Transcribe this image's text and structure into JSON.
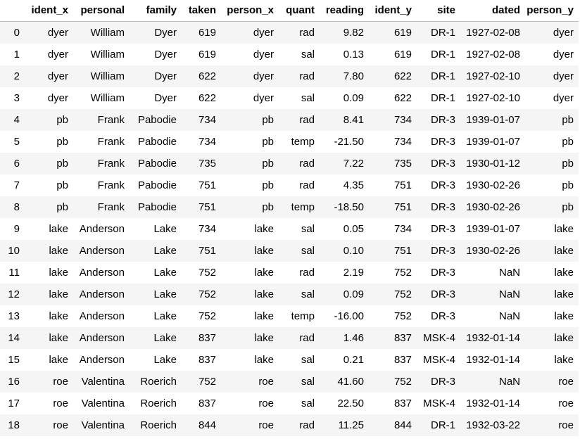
{
  "table": {
    "columns": [
      "",
      "ident_x",
      "personal",
      "family",
      "taken",
      "person_x",
      "quant",
      "reading",
      "ident_y",
      "site",
      "dated",
      "person_y"
    ],
    "rows": [
      [
        "0",
        "dyer",
        "William",
        "Dyer",
        "619",
        "dyer",
        "rad",
        "9.82",
        "619",
        "DR-1",
        "1927-02-08",
        "dyer"
      ],
      [
        "1",
        "dyer",
        "William",
        "Dyer",
        "619",
        "dyer",
        "sal",
        "0.13",
        "619",
        "DR-1",
        "1927-02-08",
        "dyer"
      ],
      [
        "2",
        "dyer",
        "William",
        "Dyer",
        "622",
        "dyer",
        "rad",
        "7.80",
        "622",
        "DR-1",
        "1927-02-10",
        "dyer"
      ],
      [
        "3",
        "dyer",
        "William",
        "Dyer",
        "622",
        "dyer",
        "sal",
        "0.09",
        "622",
        "DR-1",
        "1927-02-10",
        "dyer"
      ],
      [
        "4",
        "pb",
        "Frank",
        "Pabodie",
        "734",
        "pb",
        "rad",
        "8.41",
        "734",
        "DR-3",
        "1939-01-07",
        "pb"
      ],
      [
        "5",
        "pb",
        "Frank",
        "Pabodie",
        "734",
        "pb",
        "temp",
        "-21.50",
        "734",
        "DR-3",
        "1939-01-07",
        "pb"
      ],
      [
        "6",
        "pb",
        "Frank",
        "Pabodie",
        "735",
        "pb",
        "rad",
        "7.22",
        "735",
        "DR-3",
        "1930-01-12",
        "pb"
      ],
      [
        "7",
        "pb",
        "Frank",
        "Pabodie",
        "751",
        "pb",
        "rad",
        "4.35",
        "751",
        "DR-3",
        "1930-02-26",
        "pb"
      ],
      [
        "8",
        "pb",
        "Frank",
        "Pabodie",
        "751",
        "pb",
        "temp",
        "-18.50",
        "751",
        "DR-3",
        "1930-02-26",
        "pb"
      ],
      [
        "9",
        "lake",
        "Anderson",
        "Lake",
        "734",
        "lake",
        "sal",
        "0.05",
        "734",
        "DR-3",
        "1939-01-07",
        "lake"
      ],
      [
        "10",
        "lake",
        "Anderson",
        "Lake",
        "751",
        "lake",
        "sal",
        "0.10",
        "751",
        "DR-3",
        "1930-02-26",
        "lake"
      ],
      [
        "11",
        "lake",
        "Anderson",
        "Lake",
        "752",
        "lake",
        "rad",
        "2.19",
        "752",
        "DR-3",
        "NaN",
        "lake"
      ],
      [
        "12",
        "lake",
        "Anderson",
        "Lake",
        "752",
        "lake",
        "sal",
        "0.09",
        "752",
        "DR-3",
        "NaN",
        "lake"
      ],
      [
        "13",
        "lake",
        "Anderson",
        "Lake",
        "752",
        "lake",
        "temp",
        "-16.00",
        "752",
        "DR-3",
        "NaN",
        "lake"
      ],
      [
        "14",
        "lake",
        "Anderson",
        "Lake",
        "837",
        "lake",
        "rad",
        "1.46",
        "837",
        "MSK-4",
        "1932-01-14",
        "lake"
      ],
      [
        "15",
        "lake",
        "Anderson",
        "Lake",
        "837",
        "lake",
        "sal",
        "0.21",
        "837",
        "MSK-4",
        "1932-01-14",
        "lake"
      ],
      [
        "16",
        "roe",
        "Valentina",
        "Roerich",
        "752",
        "roe",
        "sal",
        "41.60",
        "752",
        "DR-3",
        "NaN",
        "roe"
      ],
      [
        "17",
        "roe",
        "Valentina",
        "Roerich",
        "837",
        "roe",
        "sal",
        "22.50",
        "837",
        "MSK-4",
        "1932-01-14",
        "roe"
      ],
      [
        "18",
        "roe",
        "Valentina",
        "Roerich",
        "844",
        "roe",
        "rad",
        "11.25",
        "844",
        "DR-1",
        "1932-03-22",
        "roe"
      ]
    ]
  },
  "colors": {
    "stripe": "#f5f5f5",
    "header_rule": "#bdbdbd",
    "text": "#000000"
  }
}
